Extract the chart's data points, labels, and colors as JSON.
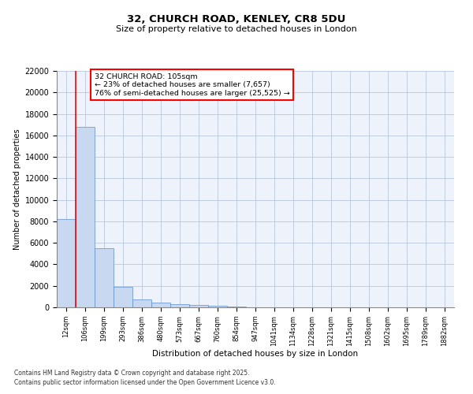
{
  "title1": "32, CHURCH ROAD, KENLEY, CR8 5DU",
  "title2": "Size of property relative to detached houses in London",
  "xlabel": "Distribution of detached houses by size in London",
  "ylabel": "Number of detached properties",
  "categories": [
    "12sqm",
    "106sqm",
    "199sqm",
    "293sqm",
    "386sqm",
    "480sqm",
    "573sqm",
    "667sqm",
    "760sqm",
    "854sqm",
    "947sqm",
    "1041sqm",
    "1134sqm",
    "1228sqm",
    "1321sqm",
    "1415sqm",
    "1508sqm",
    "1602sqm",
    "1695sqm",
    "1789sqm",
    "1882sqm"
  ],
  "values": [
    8200,
    16800,
    5500,
    1900,
    750,
    430,
    260,
    200,
    150,
    70,
    0,
    0,
    0,
    0,
    0,
    0,
    0,
    0,
    0,
    0,
    0
  ],
  "bar_color": "#c8d8f0",
  "bar_edge_color": "#5a8fd0",
  "red_line_x": 1.0,
  "annotation_line1": "32 CHURCH ROAD: 105sqm",
  "annotation_line2": "← 23% of detached houses are smaller (7,657)",
  "annotation_line3": "76% of semi-detached houses are larger (25,525) →",
  "ylim_max": 22000,
  "yticks": [
    0,
    2000,
    4000,
    6000,
    8000,
    10000,
    12000,
    14000,
    16000,
    18000,
    20000,
    22000
  ],
  "grid_color": "#b8c8e0",
  "background_color": "#eef2fa",
  "footnote1": "Contains HM Land Registry data © Crown copyright and database right 2025.",
  "footnote2": "Contains public sector information licensed under the Open Government Licence v3.0."
}
